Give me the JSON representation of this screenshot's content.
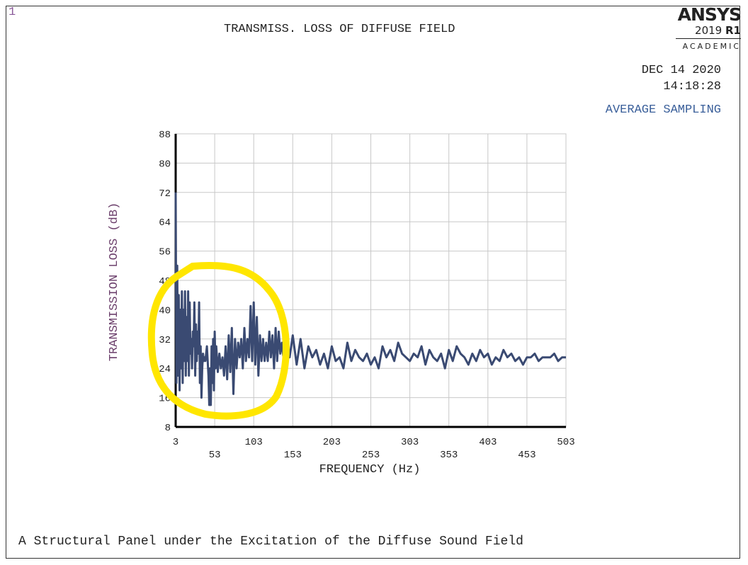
{
  "window_number": "1",
  "logo": {
    "name": "ANSYS",
    "version": "2019",
    "release": "R1",
    "edition": "ACADEMIC"
  },
  "date": "DEC 14 2020",
  "time": "14:18:28",
  "mode": "AVERAGE SAMPLING",
  "caption": "A Structural Panel under the Excitation of the Diffuse Sound Field",
  "colors": {
    "series": "#3a4a72",
    "annotation": "#ffe600",
    "grid": "#c8c8c8"
  },
  "annotation": "yellow-hand-drawn-circle",
  "chart_data": {
    "type": "line",
    "title": "TRANSMISS. LOSS OF DIFFUSE FIELD",
    "xlabel": "FREQUENCY (Hz)",
    "ylabel": "TRANSMISSION LOSS (dB)",
    "xlim": [
      3,
      503
    ],
    "ylim": [
      8,
      88
    ],
    "grid": true,
    "xticks": [
      3,
      53,
      103,
      153,
      203,
      253,
      303,
      353,
      403,
      453,
      503
    ],
    "yticks": [
      8,
      16,
      24,
      32,
      40,
      48,
      56,
      64,
      72,
      80,
      88
    ],
    "x": [
      3,
      4,
      5,
      6,
      7,
      8,
      9,
      10,
      11,
      12,
      13,
      14,
      15,
      16,
      17,
      18,
      19,
      20,
      21,
      22,
      23,
      24,
      25,
      26,
      27,
      28,
      29,
      30,
      31,
      32,
      33,
      34,
      35,
      36,
      37,
      38,
      39,
      40,
      41,
      42,
      43,
      44,
      45,
      46,
      47,
      48,
      49,
      50,
      51,
      52,
      53,
      54,
      55,
      57,
      59,
      61,
      63,
      65,
      67,
      69,
      71,
      73,
      75,
      77,
      79,
      81,
      83,
      85,
      87,
      89,
      91,
      93,
      95,
      97,
      99,
      101,
      103,
      105,
      107,
      109,
      111,
      113,
      115,
      117,
      119,
      121,
      123,
      125,
      127,
      129,
      131,
      133,
      135,
      137,
      139,
      141,
      143,
      145,
      147,
      149,
      153,
      158,
      163,
      168,
      173,
      178,
      183,
      188,
      193,
      198,
      203,
      208,
      213,
      218,
      223,
      228,
      233,
      238,
      243,
      248,
      253,
      258,
      263,
      268,
      273,
      278,
      283,
      288,
      293,
      298,
      303,
      308,
      313,
      318,
      323,
      328,
      333,
      338,
      343,
      348,
      353,
      358,
      363,
      368,
      373,
      378,
      383,
      388,
      393,
      398,
      403,
      408,
      413,
      418,
      423,
      428,
      433,
      438,
      443,
      448,
      453,
      458,
      463,
      468,
      473,
      478,
      483,
      488,
      493,
      498,
      503
    ],
    "y": [
      72,
      20,
      52,
      22,
      44,
      18,
      40,
      24,
      45,
      20,
      40,
      26,
      45,
      22,
      38,
      26,
      45,
      22,
      42,
      28,
      32,
      24,
      34,
      30,
      42,
      22,
      36,
      26,
      34,
      28,
      42,
      20,
      30,
      16,
      24,
      28,
      26,
      27,
      26,
      28,
      30,
      26,
      22,
      14,
      24,
      14,
      30,
      20,
      32,
      18,
      34,
      24,
      30,
      23,
      28,
      24,
      27,
      22,
      30,
      21,
      33,
      23,
      35,
      17,
      32,
      24,
      31,
      27,
      32,
      24,
      35,
      26,
      32,
      27,
      41,
      26,
      42,
      25,
      38,
      22,
      33,
      26,
      32,
      26,
      31,
      26,
      34,
      27,
      33,
      24,
      35,
      26,
      34,
      28,
      31,
      27,
      35,
      25,
      30,
      27,
      33,
      25,
      32,
      24,
      30,
      27,
      29,
      25,
      28,
      24,
      30,
      26,
      27,
      24,
      31,
      26,
      29,
      27,
      26,
      28,
      25,
      27,
      24,
      30,
      27,
      29,
      26,
      31,
      28,
      27,
      26,
      28,
      27,
      30,
      25,
      29,
      27,
      26,
      28,
      24,
      29,
      26,
      30,
      28,
      27,
      25,
      28,
      26,
      29,
      27,
      28,
      25,
      27,
      26,
      29,
      27,
      28,
      26,
      27,
      25,
      27,
      27,
      28,
      26,
      27,
      27,
      27,
      28,
      26,
      27,
      27
    ]
  }
}
